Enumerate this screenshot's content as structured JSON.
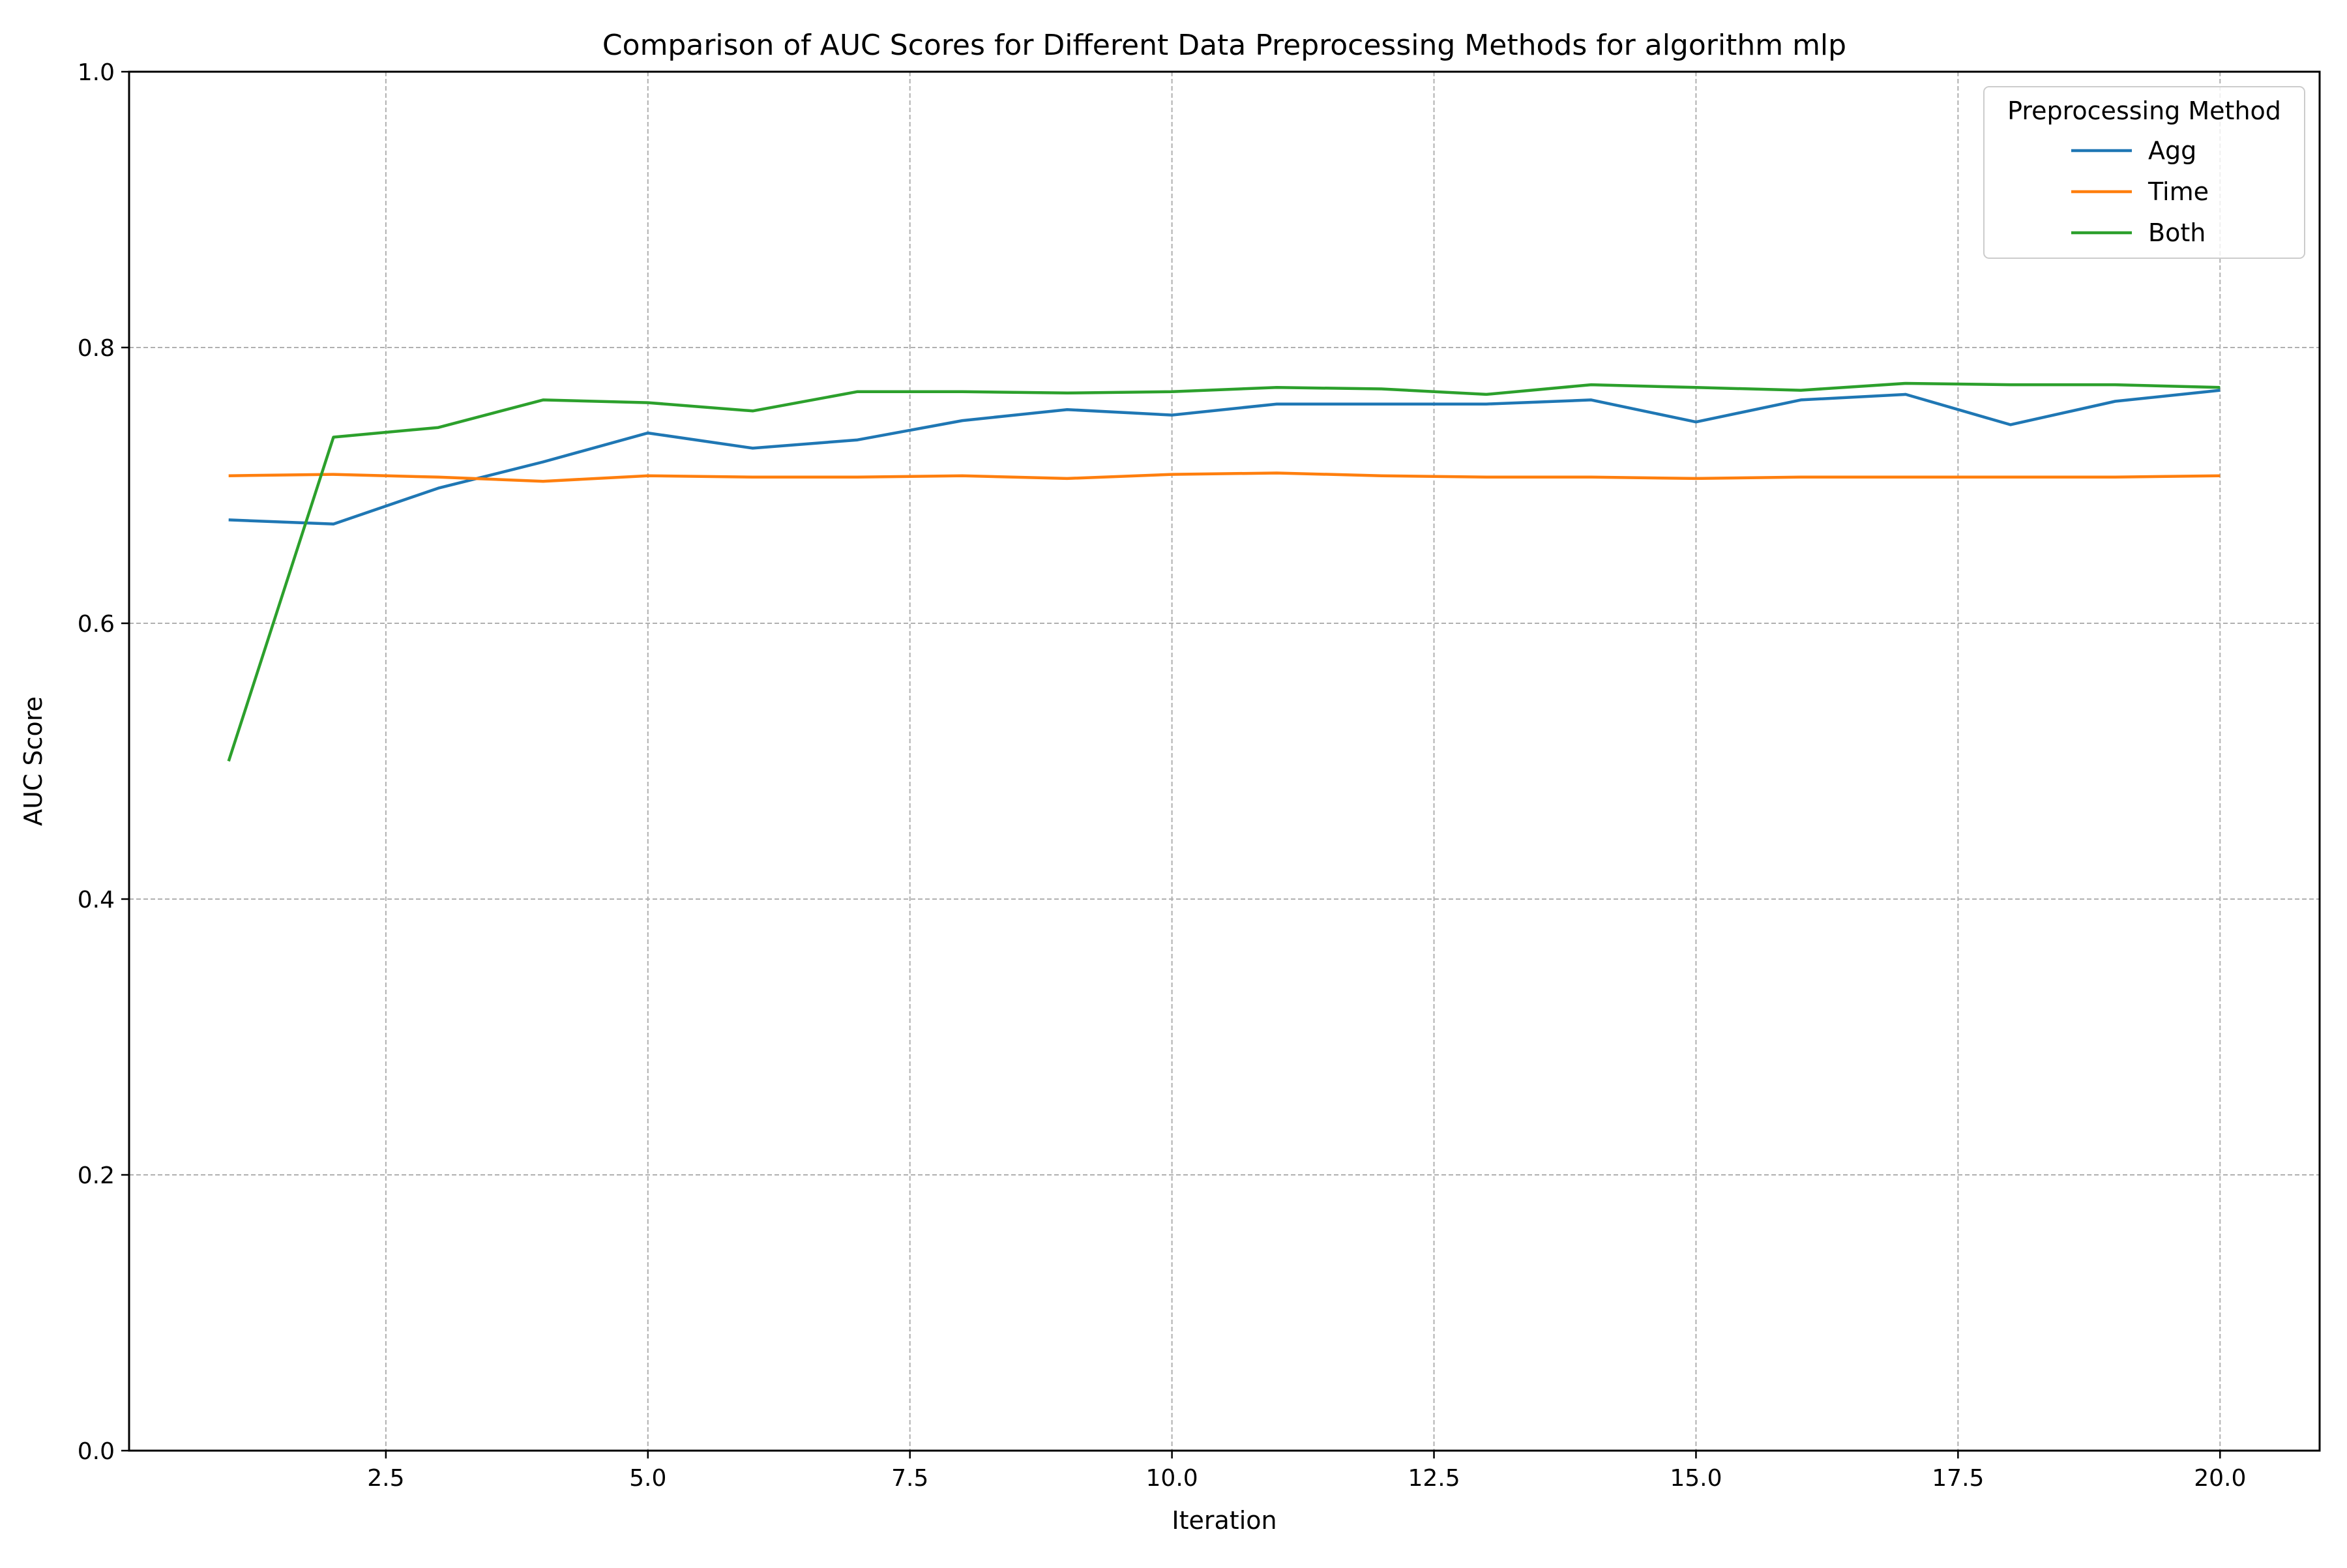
{
  "chart_data": {
    "type": "line",
    "title": "Comparison of AUC Scores for Different Data Preprocessing Methods for algorithm mlp",
    "xlabel": "Iteration",
    "ylabel": "AUC Score",
    "xlim": [
      0.05,
      20.95
    ],
    "ylim": [
      0.0,
      1.0
    ],
    "x_ticks": [
      2.5,
      5.0,
      7.5,
      10.0,
      12.5,
      15.0,
      17.5,
      20.0
    ],
    "x_tick_labels": [
      "2.5",
      "5.0",
      "7.5",
      "10.0",
      "12.5",
      "15.0",
      "17.5",
      "20.0"
    ],
    "y_ticks": [
      0.0,
      0.2,
      0.4,
      0.6,
      0.8,
      1.0
    ],
    "y_tick_labels": [
      "0.0",
      "0.2",
      "0.4",
      "0.6",
      "0.8",
      "1.0"
    ],
    "grid": true,
    "legend_title": "Preprocessing Method",
    "legend_position": "top-right",
    "x": [
      1,
      2,
      3,
      4,
      5,
      6,
      7,
      8,
      9,
      10,
      11,
      12,
      13,
      14,
      15,
      16,
      17,
      18,
      19,
      20
    ],
    "series": [
      {
        "name": "Agg",
        "color": "#1f77b4",
        "values": [
          0.675,
          0.672,
          0.698,
          0.717,
          0.738,
          0.727,
          0.733,
          0.747,
          0.755,
          0.751,
          0.759,
          0.759,
          0.759,
          0.762,
          0.746,
          0.762,
          0.766,
          0.744,
          0.761,
          0.769
        ]
      },
      {
        "name": "Time",
        "color": "#ff7f0e",
        "values": [
          0.707,
          0.708,
          0.706,
          0.703,
          0.707,
          0.706,
          0.706,
          0.707,
          0.705,
          0.708,
          0.709,
          0.707,
          0.706,
          0.706,
          0.705,
          0.706,
          0.706,
          0.706,
          0.706,
          0.707
        ]
      },
      {
        "name": "Both",
        "color": "#2ca02c",
        "values": [
          0.5,
          0.735,
          0.742,
          0.762,
          0.76,
          0.754,
          0.768,
          0.768,
          0.767,
          0.768,
          0.771,
          0.77,
          0.766,
          0.773,
          0.771,
          0.769,
          0.774,
          0.773,
          0.773,
          0.771
        ]
      }
    ]
  }
}
